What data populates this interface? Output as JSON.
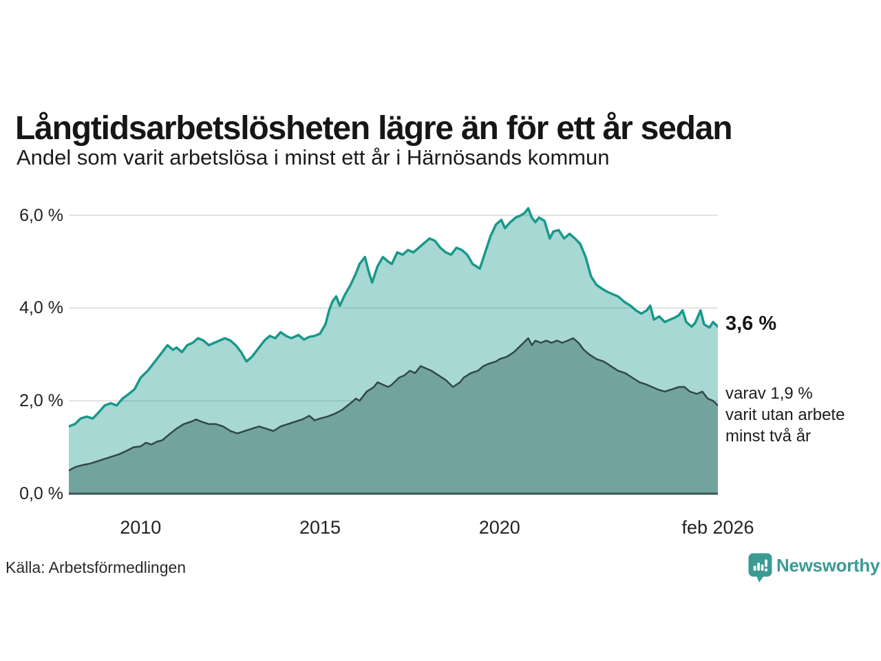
{
  "header": {
    "title": "Långtidsarbetslösheten lägre än för ett år sedan",
    "subtitle": "Andel som varit arbetslösa i minst ett år i Härnösands kommun"
  },
  "annotations": {
    "end_value": "3,6 %",
    "secondary_line1": "varav 1,9 %",
    "secondary_line2": "varit utan arbete",
    "secondary_line3": "minst två år"
  },
  "footer": {
    "source": "Källa: Arbetsförmedlingen",
    "brand_name": "Newsworthy"
  },
  "colors": {
    "accent_teal": "#18988b",
    "light_fill": "rgba(24,152,139,0.38)",
    "dark_series_line": "#31474a",
    "dark_series_fill": "#72a49d",
    "grid": "#d9d9d9",
    "baseline": "#3c5254",
    "text": "#1a1a1a",
    "brand_teal": "#3a9b93"
  },
  "chart_data": {
    "type": "area",
    "title": "Långtidsarbetslösheten lägre än för ett år sedan",
    "subtitle": "Andel som varit arbetslösa i minst ett år i Härnösands kommun",
    "xlabel": "",
    "ylabel": "",
    "xlim": [
      2008.0,
      2026.083
    ],
    "ylim": [
      0,
      6.4
    ],
    "grid": true,
    "legend_position": "none",
    "y_ticks": [
      {
        "v": 0,
        "label": "0,0 %"
      },
      {
        "v": 2,
        "label": "2,0 %"
      },
      {
        "v": 4,
        "label": "4,0 %"
      },
      {
        "v": 6,
        "label": "6,0 %"
      }
    ],
    "x_ticks": [
      {
        "v": 2010,
        "label": "2010"
      },
      {
        "v": 2015,
        "label": "2015"
      },
      {
        "v": 2020,
        "label": "2020"
      },
      {
        "v": 2026.083,
        "label": "feb 2026"
      }
    ],
    "series": [
      {
        "name": "Andel arbetslösa minst ett år",
        "end_label": "3,6 %",
        "end_value": 3.6,
        "line_color": "#18988b",
        "line_width": 3.5,
        "fill_color": "rgba(24,152,139,0.38)",
        "points": [
          [
            2008.0,
            1.45
          ],
          [
            2008.17,
            1.5
          ],
          [
            2008.33,
            1.62
          ],
          [
            2008.5,
            1.66
          ],
          [
            2008.67,
            1.62
          ],
          [
            2008.83,
            1.75
          ],
          [
            2009.0,
            1.9
          ],
          [
            2009.17,
            1.95
          ],
          [
            2009.33,
            1.9
          ],
          [
            2009.5,
            2.05
          ],
          [
            2009.67,
            2.15
          ],
          [
            2009.83,
            2.25
          ],
          [
            2010.0,
            2.5
          ],
          [
            2010.2,
            2.65
          ],
          [
            2010.4,
            2.85
          ],
          [
            2010.5,
            2.95
          ],
          [
            2010.6,
            3.05
          ],
          [
            2010.75,
            3.2
          ],
          [
            2010.9,
            3.1
          ],
          [
            2011.0,
            3.15
          ],
          [
            2011.15,
            3.05
          ],
          [
            2011.3,
            3.2
          ],
          [
            2011.45,
            3.25
          ],
          [
            2011.6,
            3.35
          ],
          [
            2011.75,
            3.3
          ],
          [
            2011.9,
            3.2
          ],
          [
            2012.05,
            3.25
          ],
          [
            2012.2,
            3.3
          ],
          [
            2012.35,
            3.35
          ],
          [
            2012.5,
            3.3
          ],
          [
            2012.65,
            3.2
          ],
          [
            2012.8,
            3.05
          ],
          [
            2012.95,
            2.85
          ],
          [
            2013.1,
            2.95
          ],
          [
            2013.3,
            3.15
          ],
          [
            2013.45,
            3.3
          ],
          [
            2013.6,
            3.4
          ],
          [
            2013.75,
            3.35
          ],
          [
            2013.9,
            3.48
          ],
          [
            2014.05,
            3.4
          ],
          [
            2014.2,
            3.35
          ],
          [
            2014.4,
            3.42
          ],
          [
            2014.55,
            3.32
          ],
          [
            2014.7,
            3.38
          ],
          [
            2014.85,
            3.4
          ],
          [
            2015.0,
            3.45
          ],
          [
            2015.15,
            3.65
          ],
          [
            2015.25,
            3.95
          ],
          [
            2015.35,
            4.15
          ],
          [
            2015.45,
            4.25
          ],
          [
            2015.55,
            4.05
          ],
          [
            2015.7,
            4.3
          ],
          [
            2015.85,
            4.5
          ],
          [
            2016.0,
            4.75
          ],
          [
            2016.1,
            4.95
          ],
          [
            2016.25,
            5.1
          ],
          [
            2016.35,
            4.8
          ],
          [
            2016.45,
            4.55
          ],
          [
            2016.6,
            4.9
          ],
          [
            2016.75,
            5.1
          ],
          [
            2016.9,
            5.0
          ],
          [
            2017.0,
            4.95
          ],
          [
            2017.15,
            5.2
          ],
          [
            2017.3,
            5.15
          ],
          [
            2017.45,
            5.25
          ],
          [
            2017.6,
            5.2
          ],
          [
            2017.75,
            5.3
          ],
          [
            2017.9,
            5.4
          ],
          [
            2018.05,
            5.5
          ],
          [
            2018.2,
            5.45
          ],
          [
            2018.35,
            5.3
          ],
          [
            2018.5,
            5.2
          ],
          [
            2018.65,
            5.15
          ],
          [
            2018.8,
            5.3
          ],
          [
            2018.95,
            5.25
          ],
          [
            2019.1,
            5.15
          ],
          [
            2019.25,
            4.95
          ],
          [
            2019.45,
            4.85
          ],
          [
            2019.6,
            5.2
          ],
          [
            2019.75,
            5.55
          ],
          [
            2019.9,
            5.8
          ],
          [
            2020.05,
            5.9
          ],
          [
            2020.15,
            5.72
          ],
          [
            2020.3,
            5.85
          ],
          [
            2020.45,
            5.95
          ],
          [
            2020.6,
            6.0
          ],
          [
            2020.7,
            6.05
          ],
          [
            2020.8,
            6.15
          ],
          [
            2020.9,
            5.95
          ],
          [
            2021.0,
            5.85
          ],
          [
            2021.1,
            5.95
          ],
          [
            2021.25,
            5.88
          ],
          [
            2021.4,
            5.5
          ],
          [
            2021.5,
            5.65
          ],
          [
            2021.65,
            5.68
          ],
          [
            2021.8,
            5.5
          ],
          [
            2021.95,
            5.6
          ],
          [
            2022.1,
            5.5
          ],
          [
            2022.25,
            5.38
          ],
          [
            2022.4,
            5.1
          ],
          [
            2022.55,
            4.68
          ],
          [
            2022.7,
            4.5
          ],
          [
            2022.85,
            4.42
          ],
          [
            2023.0,
            4.35
          ],
          [
            2023.15,
            4.3
          ],
          [
            2023.3,
            4.25
          ],
          [
            2023.5,
            4.12
          ],
          [
            2023.65,
            4.05
          ],
          [
            2023.8,
            3.95
          ],
          [
            2023.95,
            3.88
          ],
          [
            2024.1,
            3.95
          ],
          [
            2024.2,
            4.05
          ],
          [
            2024.3,
            3.75
          ],
          [
            2024.45,
            3.82
          ],
          [
            2024.6,
            3.7
          ],
          [
            2024.75,
            3.75
          ],
          [
            2024.9,
            3.8
          ],
          [
            2025.0,
            3.85
          ],
          [
            2025.1,
            3.95
          ],
          [
            2025.2,
            3.7
          ],
          [
            2025.35,
            3.6
          ],
          [
            2025.45,
            3.68
          ],
          [
            2025.6,
            3.95
          ],
          [
            2025.7,
            3.65
          ],
          [
            2025.85,
            3.58
          ],
          [
            2025.95,
            3.7
          ],
          [
            2026.083,
            3.6
          ]
        ]
      },
      {
        "name": "varav utan arbete minst två år",
        "end_label": "1,9 %",
        "end_value": 1.9,
        "line_color": "#31474a",
        "line_width": 2.5,
        "fill_color": "#72a49d",
        "points": [
          [
            2008.0,
            0.5
          ],
          [
            2008.2,
            0.58
          ],
          [
            2008.4,
            0.62
          ],
          [
            2008.6,
            0.65
          ],
          [
            2008.8,
            0.7
          ],
          [
            2009.0,
            0.75
          ],
          [
            2009.2,
            0.8
          ],
          [
            2009.4,
            0.85
          ],
          [
            2009.6,
            0.92
          ],
          [
            2009.8,
            1.0
          ],
          [
            2010.0,
            1.02
          ],
          [
            2010.15,
            1.1
          ],
          [
            2010.3,
            1.06
          ],
          [
            2010.45,
            1.12
          ],
          [
            2010.6,
            1.15
          ],
          [
            2010.8,
            1.28
          ],
          [
            2011.0,
            1.4
          ],
          [
            2011.2,
            1.5
          ],
          [
            2011.4,
            1.55
          ],
          [
            2011.55,
            1.6
          ],
          [
            2011.7,
            1.55
          ],
          [
            2011.9,
            1.5
          ],
          [
            2012.1,
            1.5
          ],
          [
            2012.3,
            1.45
          ],
          [
            2012.5,
            1.35
          ],
          [
            2012.7,
            1.3
          ],
          [
            2012.9,
            1.35
          ],
          [
            2013.1,
            1.4
          ],
          [
            2013.3,
            1.45
          ],
          [
            2013.5,
            1.4
          ],
          [
            2013.7,
            1.35
          ],
          [
            2013.9,
            1.45
          ],
          [
            2014.1,
            1.5
          ],
          [
            2014.3,
            1.55
          ],
          [
            2014.5,
            1.6
          ],
          [
            2014.7,
            1.68
          ],
          [
            2014.85,
            1.58
          ],
          [
            2015.0,
            1.62
          ],
          [
            2015.2,
            1.66
          ],
          [
            2015.4,
            1.72
          ],
          [
            2015.6,
            1.8
          ],
          [
            2015.8,
            1.92
          ],
          [
            2016.0,
            2.05
          ],
          [
            2016.1,
            2.0
          ],
          [
            2016.3,
            2.2
          ],
          [
            2016.5,
            2.3
          ],
          [
            2016.6,
            2.4
          ],
          [
            2016.75,
            2.35
          ],
          [
            2016.9,
            2.3
          ],
          [
            2017.0,
            2.35
          ],
          [
            2017.2,
            2.5
          ],
          [
            2017.35,
            2.55
          ],
          [
            2017.5,
            2.65
          ],
          [
            2017.65,
            2.6
          ],
          [
            2017.8,
            2.75
          ],
          [
            2017.95,
            2.7
          ],
          [
            2018.1,
            2.65
          ],
          [
            2018.3,
            2.55
          ],
          [
            2018.5,
            2.45
          ],
          [
            2018.7,
            2.3
          ],
          [
            2018.9,
            2.4
          ],
          [
            2019.0,
            2.5
          ],
          [
            2019.2,
            2.6
          ],
          [
            2019.4,
            2.65
          ],
          [
            2019.55,
            2.75
          ],
          [
            2019.7,
            2.8
          ],
          [
            2019.9,
            2.85
          ],
          [
            2020.0,
            2.9
          ],
          [
            2020.2,
            2.95
          ],
          [
            2020.4,
            3.05
          ],
          [
            2020.6,
            3.2
          ],
          [
            2020.8,
            3.35
          ],
          [
            2020.9,
            3.2
          ],
          [
            2021.0,
            3.3
          ],
          [
            2021.15,
            3.25
          ],
          [
            2021.3,
            3.3
          ],
          [
            2021.45,
            3.25
          ],
          [
            2021.6,
            3.3
          ],
          [
            2021.75,
            3.25
          ],
          [
            2021.9,
            3.3
          ],
          [
            2022.05,
            3.35
          ],
          [
            2022.2,
            3.25
          ],
          [
            2022.35,
            3.1
          ],
          [
            2022.5,
            3.0
          ],
          [
            2022.7,
            2.9
          ],
          [
            2022.9,
            2.85
          ],
          [
            2023.1,
            2.75
          ],
          [
            2023.3,
            2.65
          ],
          [
            2023.5,
            2.6
          ],
          [
            2023.7,
            2.5
          ],
          [
            2023.9,
            2.4
          ],
          [
            2024.1,
            2.35
          ],
          [
            2024.25,
            2.3
          ],
          [
            2024.4,
            2.25
          ],
          [
            2024.6,
            2.2
          ],
          [
            2024.8,
            2.25
          ],
          [
            2025.0,
            2.3
          ],
          [
            2025.15,
            2.3
          ],
          [
            2025.3,
            2.2
          ],
          [
            2025.5,
            2.15
          ],
          [
            2025.65,
            2.2
          ],
          [
            2025.8,
            2.05
          ],
          [
            2025.95,
            2.0
          ],
          [
            2026.083,
            1.9
          ]
        ]
      }
    ]
  }
}
